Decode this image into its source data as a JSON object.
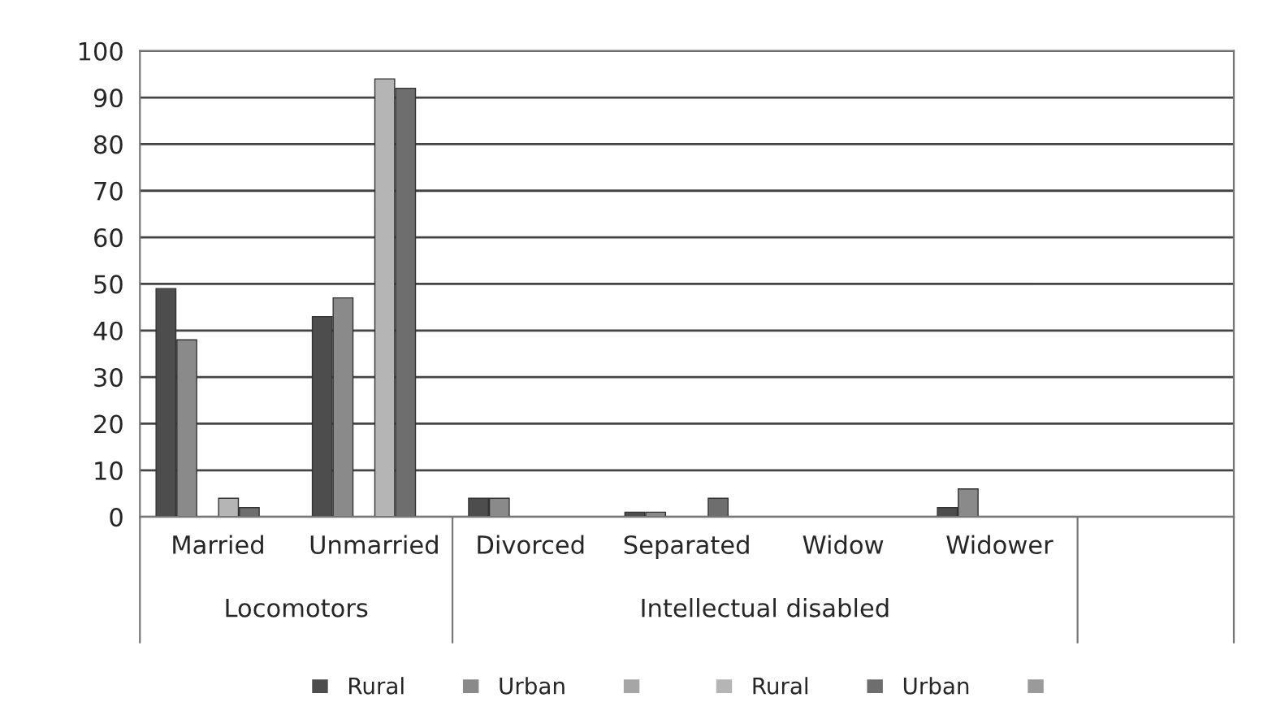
{
  "chart_data": {
    "type": "bar",
    "categories": [
      "Married",
      "Unmarried",
      "Divorced",
      "Separated",
      "Widow",
      "Widower",
      null
    ],
    "series": [
      {
        "name": "Rural",
        "color": "#4d4d4d",
        "values": [
          49,
          43,
          4,
          1,
          null,
          2,
          null
        ]
      },
      {
        "name": "Urban",
        "color": "#8a8a8a",
        "values": [
          38,
          47,
          4,
          1,
          null,
          6,
          null
        ]
      },
      {
        "color": "#a6a6a6",
        "values": [
          null,
          null,
          null,
          null,
          null,
          null,
          null
        ]
      },
      {
        "name": "Rural",
        "color": "#b5b5b5",
        "values": [
          4,
          94,
          null,
          null,
          null,
          null,
          null
        ]
      },
      {
        "name": "Urban",
        "color": "#6e6e6e",
        "values": [
          2,
          92,
          null,
          4,
          null,
          null,
          null
        ]
      },
      {
        "color": "#9a9a9a",
        "values": [
          null,
          null,
          null,
          null,
          null,
          null,
          null
        ]
      }
    ],
    "annotations": [
      "Locomotors",
      "Intellectual disabled"
    ],
    "ylim": [
      0,
      100
    ],
    "yticks": [
      0,
      10,
      20,
      30,
      40,
      50,
      60,
      70,
      80,
      90,
      100
    ],
    "grid": "y",
    "legend": "bottom"
  }
}
